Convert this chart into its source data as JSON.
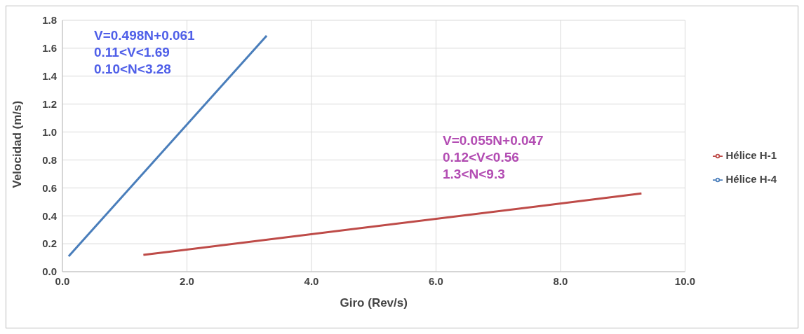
{
  "chart_data": {
    "type": "line",
    "xlabel": "Giro (Rev/s)",
    "ylabel": "Velocidad (m/s)",
    "series": [
      {
        "name": "Hélice H-4",
        "color": "#4a7ebb",
        "x": [
          0.1,
          3.28
        ],
        "values": [
          0.11,
          1.69
        ]
      },
      {
        "name": "Hélice H-1",
        "color": "#be4b48",
        "x": [
          1.3,
          9.3
        ],
        "values": [
          0.12,
          0.56
        ]
      }
    ],
    "xlim": [
      0,
      10
    ],
    "xticks": [
      {
        "value": 0,
        "label": "0.0"
      },
      {
        "value": 2,
        "label": "2.0"
      },
      {
        "value": 4,
        "label": "4.0"
      },
      {
        "value": 6,
        "label": "6.0"
      },
      {
        "value": 8,
        "label": "8.0"
      },
      {
        "value": 10,
        "label": "10.0"
      }
    ],
    "ylim": [
      0,
      1.8
    ],
    "yticks": [
      {
        "value": 0,
        "label": "0.0"
      },
      {
        "value": 0.2,
        "label": "0.2"
      },
      {
        "value": 0.4,
        "label": "0.4"
      },
      {
        "value": 0.6,
        "label": "0.6"
      },
      {
        "value": 0.8,
        "label": "0.8"
      },
      {
        "value": 1.0,
        "label": "1.0"
      },
      {
        "value": 1.2,
        "label": "1.2"
      },
      {
        "value": 1.4,
        "label": "1.4"
      },
      {
        "value": 1.6,
        "label": "1.6"
      },
      {
        "value": 1.8,
        "label": "1.8"
      }
    ],
    "annotations": [
      "V=0.498N+0.061",
      "0.11<V<1.69",
      "0.10<N<3.28",
      "V=0.055N+0.047",
      "0.12<V<0.56",
      "1.3<N<9.3"
    ],
    "grid": true,
    "legend": "right",
    "marker": "none",
    "line_style": "solid"
  }
}
